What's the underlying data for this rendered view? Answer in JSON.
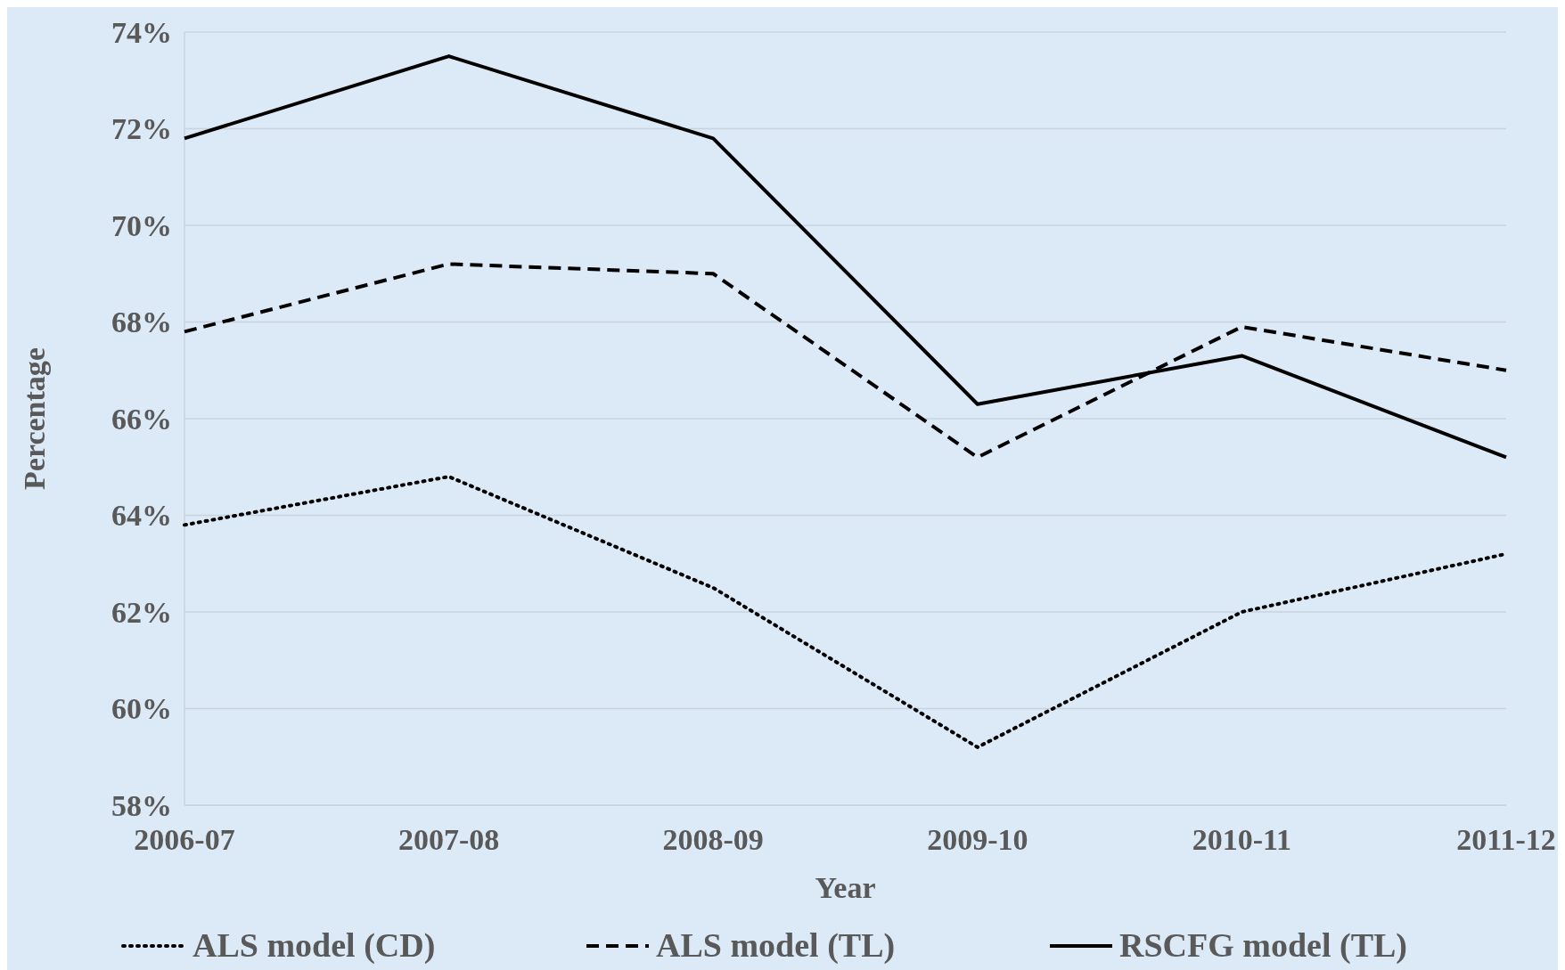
{
  "chart_data": {
    "type": "line",
    "xlabel": "Year",
    "ylabel": "Percentage",
    "categories": [
      "2006-07",
      "2007-08",
      "2008-09",
      "2009-10",
      "2010-11",
      "2011-12"
    ],
    "series": [
      {
        "name": "ALS model (CD)",
        "color": "#000000",
        "line_style": "dotted",
        "values": [
          63.8,
          64.8,
          62.5,
          59.2,
          62.0,
          63.2
        ]
      },
      {
        "name": "ALS model (TL)",
        "color": "#000000",
        "line_style": "dashed",
        "values": [
          67.8,
          69.2,
          69.0,
          65.2,
          67.9,
          67.0
        ]
      },
      {
        "name": "RSCFG model (TL)",
        "color": "#000000",
        "line_style": "solid",
        "values": [
          71.8,
          73.5,
          71.8,
          66.3,
          67.3,
          65.2
        ]
      }
    ],
    "ylim": [
      58,
      74
    ],
    "yticks": [
      {
        "value": 58,
        "label": "58%"
      },
      {
        "value": 60,
        "label": "60%"
      },
      {
        "value": 62,
        "label": "62%"
      },
      {
        "value": 64,
        "label": "64%"
      },
      {
        "value": 66,
        "label": "66%"
      },
      {
        "value": 68,
        "label": "68%"
      },
      {
        "value": 70,
        "label": "70%"
      },
      {
        "value": 72,
        "label": "72%"
      },
      {
        "value": 74,
        "label": "74%"
      }
    ],
    "grid": "y",
    "legend": "bottom",
    "marker": "none"
  }
}
